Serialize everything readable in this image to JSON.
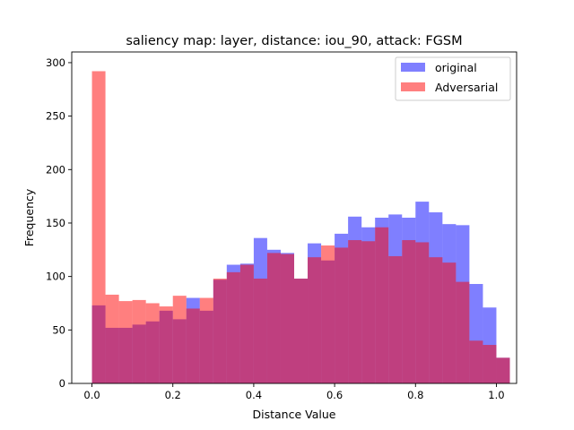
{
  "chart_data": {
    "type": "bar",
    "title": "saliency map: layer, distance: iou_90, attack: FGSM",
    "xlabel": "Distance Value",
    "ylabel": "Frequency",
    "xlim": [
      -0.05,
      1.05
    ],
    "ylim": [
      0,
      310
    ],
    "xticks": [
      0.0,
      0.2,
      0.4,
      0.6,
      0.8,
      1.0
    ],
    "xtick_labels": [
      "0.0",
      "0.2",
      "0.4",
      "0.6",
      "0.8",
      "1.0"
    ],
    "yticks": [
      0,
      50,
      100,
      150,
      200,
      250,
      300
    ],
    "ytick_labels": [
      "0",
      "50",
      "100",
      "150",
      "200",
      "250",
      "300"
    ],
    "bin_edges": [
      0.0,
      0.0333,
      0.0667,
      0.1,
      0.1333,
      0.1667,
      0.2,
      0.2333,
      0.2667,
      0.3,
      0.3333,
      0.3667,
      0.4,
      0.4333,
      0.4667,
      0.5,
      0.5333,
      0.5667,
      0.6,
      0.6333,
      0.6667,
      0.7,
      0.7333,
      0.7667,
      0.8,
      0.8333,
      0.8667,
      0.9,
      0.9333,
      0.9667,
      1.0
    ],
    "legend_position": "top-right",
    "series": [
      {
        "name": "original",
        "color": "#0000ff",
        "alpha": 0.5,
        "values": [
          73,
          52,
          52,
          55,
          58,
          68,
          60,
          80,
          68,
          97,
          111,
          112,
          136,
          125,
          122,
          98,
          131,
          115,
          140,
          156,
          146,
          155,
          158,
          155,
          170,
          160,
          149,
          148,
          93,
          71,
          24
        ]
      },
      {
        "name": "Adversarial",
        "color": "#ff0000",
        "alpha": 0.5,
        "values": [
          292,
          83,
          77,
          78,
          75,
          72,
          82,
          70,
          80,
          98,
          104,
          111,
          98,
          122,
          121,
          98,
          118,
          129,
          127,
          134,
          133,
          146,
          119,
          134,
          132,
          118,
          113,
          95,
          40,
          36,
          24
        ]
      }
    ]
  }
}
